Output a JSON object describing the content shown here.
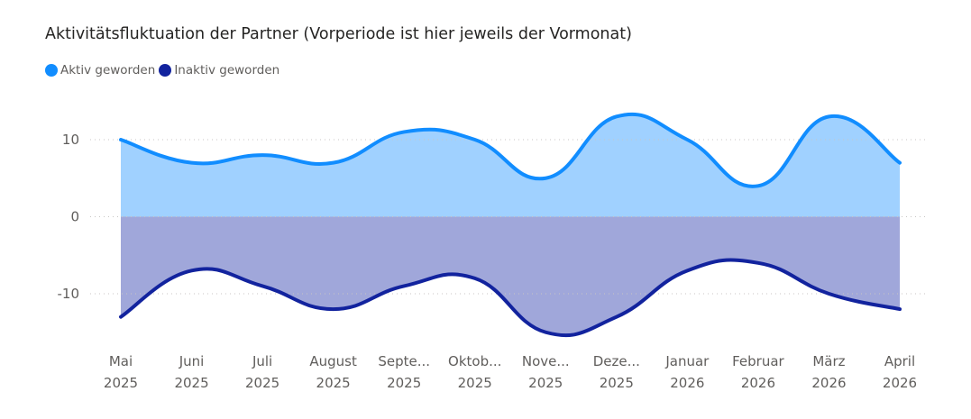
{
  "chart_data": {
    "type": "area",
    "title": "Aktivitätsfluktuation der Partner (Vorperiode ist hier jeweils der Vormonat)",
    "categories": [
      [
        "Mai",
        "2025"
      ],
      [
        "Juni",
        "2025"
      ],
      [
        "Juli",
        "2025"
      ],
      [
        "August",
        "2025"
      ],
      [
        "Septe...",
        "2025"
      ],
      [
        "Oktob...",
        "2025"
      ],
      [
        "Nove...",
        "2025"
      ],
      [
        "Deze...",
        "2025"
      ],
      [
        "Januar",
        "2026"
      ],
      [
        "Februar",
        "2026"
      ],
      [
        "März",
        "2026"
      ],
      [
        "April",
        "2026"
      ]
    ],
    "series": [
      {
        "name": "Aktiv geworden",
        "color": "#118DFF",
        "fill": "#A0D1FF",
        "values": [
          10,
          7,
          8,
          7,
          11,
          10,
          5,
          13,
          10,
          4,
          13,
          7
        ]
      },
      {
        "name": "Inaktiv geworden",
        "color": "#12239E",
        "fill": "#A0A7DA",
        "values": [
          -13,
          -7,
          -9,
          -12,
          -9,
          -8,
          -15,
          -13,
          -7,
          -6,
          -10,
          -12
        ]
      }
    ],
    "yticks": [
      10,
      0,
      -10
    ],
    "ytick_labels": [
      "10",
      "0",
      "-10"
    ],
    "ylim": [
      -15.5,
      15
    ],
    "grid": true,
    "legend_position": "top-left"
  }
}
